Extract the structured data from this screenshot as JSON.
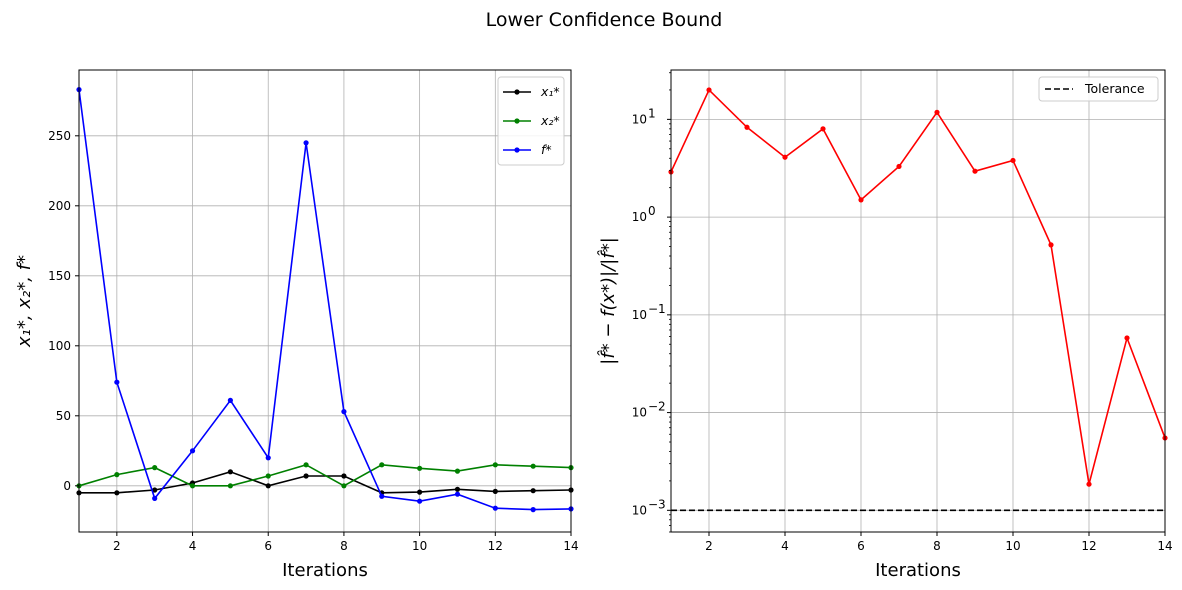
{
  "figure": {
    "suptitle": "Lower Confidence Bound"
  },
  "chart_data": [
    {
      "type": "line",
      "xlabel": "Iterations",
      "ylabel": "x₁*, x₂*, f*",
      "xlim": [
        1,
        14
      ],
      "ylim": [
        -33,
        297
      ],
      "xticks": [
        2,
        4,
        6,
        8,
        10,
        12,
        14
      ],
      "yticks": [
        0,
        50,
        100,
        150,
        200,
        250
      ],
      "grid": true,
      "legend_position": "top-right",
      "x": [
        1,
        2,
        3,
        4,
        5,
        6,
        7,
        8,
        9,
        10,
        11,
        12,
        13,
        14
      ],
      "series": [
        {
          "name": "x₁*",
          "color": "#000000",
          "values": [
            -5,
            -5,
            -3,
            2,
            10,
            0,
            7,
            7,
            -5,
            -4.5,
            -2.5,
            -4,
            -3.5,
            -3
          ]
        },
        {
          "name": "x₂*",
          "color": "#008000",
          "values": [
            0,
            8,
            13,
            0,
            0,
            7,
            15,
            0,
            15,
            12.5,
            10.5,
            15,
            14,
            13
          ]
        },
        {
          "name": "f*",
          "color": "#0000ff",
          "values": [
            283,
            74,
            -9,
            25,
            61,
            20,
            245,
            53,
            -7.5,
            -11,
            -6,
            -16,
            -17,
            -16.5
          ]
        }
      ]
    },
    {
      "type": "line",
      "yscale": "log",
      "xlabel": "Iterations",
      "ylabel": "|f̂* − f(x*)|/|f̂*|",
      "xlim": [
        1,
        14
      ],
      "ylim": [
        0.0006,
        32
      ],
      "xticks": [
        2,
        4,
        6,
        8,
        10,
        12,
        14
      ],
      "yticks": [
        0.001,
        0.01,
        0.1,
        1,
        10
      ],
      "ytick_labels": [
        "10",
        "10",
        "10",
        "10",
        "10"
      ],
      "ytick_exponents": [
        "−3",
        "−2",
        "−1",
        "0",
        "1"
      ],
      "grid": true,
      "legend_position": "top-right",
      "x": [
        1,
        2,
        3,
        4,
        5,
        6,
        7,
        8,
        9,
        10,
        11,
        12,
        13,
        14
      ],
      "series": [
        {
          "color": "#ff0000",
          "values": [
            2.9,
            20,
            8.3,
            4.1,
            8,
            1.5,
            3.3,
            11.8,
            2.95,
            3.8,
            0.52,
            0.00185,
            0.058,
            0.0055
          ]
        }
      ],
      "reference_lines": [
        {
          "name": "Tolerance",
          "y": 0.001,
          "color": "#000000",
          "style": "dashed"
        }
      ]
    }
  ]
}
